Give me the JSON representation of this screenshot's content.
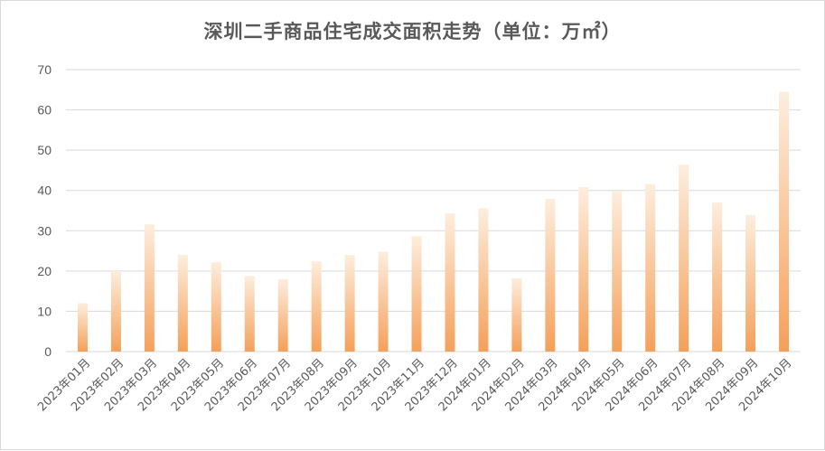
{
  "chart_data": {
    "type": "bar",
    "title": "深圳二手商品住宅成交面积走势（单位：万㎡）",
    "xlabel": "",
    "ylabel": "",
    "ylim": [
      0,
      70
    ],
    "yticks": [
      0,
      10,
      20,
      30,
      40,
      50,
      60,
      70
    ],
    "grid": true,
    "legend": "none",
    "categories": [
      "2023年01月",
      "2023年02月",
      "2023年03月",
      "2023年04月",
      "2023年05月",
      "2023年06月",
      "2023年07月",
      "2023年08月",
      "2023年09月",
      "2023年10月",
      "2023年11月",
      "2023年12月",
      "2024年01月",
      "2024年02月",
      "2024年03月",
      "2024年04月",
      "2024年05月",
      "2024年06月",
      "2024年07月",
      "2024年08月",
      "2024年09月",
      "2024年10月"
    ],
    "values": [
      12,
      20,
      31.6,
      24,
      22.2,
      18.8,
      18,
      22.4,
      24,
      24.8,
      28.7,
      34.3,
      35.6,
      18.2,
      37.9,
      40.8,
      39.8,
      41.6,
      46.4,
      37,
      33.9,
      64.5
    ],
    "bar_color_top": "#fdeede",
    "bar_color_bottom": "#f4a05a",
    "grid_color": "#d9d9d9",
    "text_color": "#595959"
  }
}
